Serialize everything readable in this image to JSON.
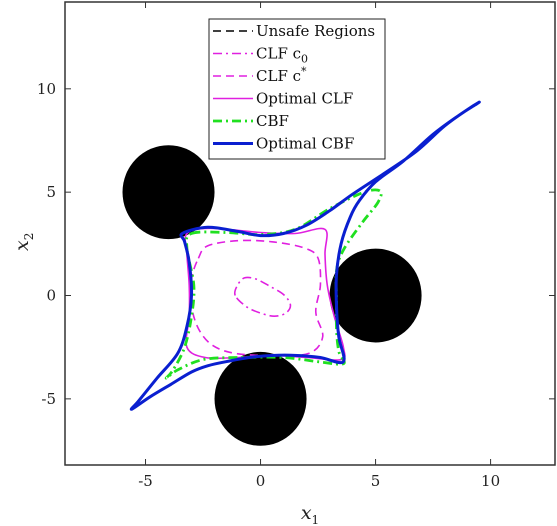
{
  "chart_data": {
    "type": "line",
    "xlim": [
      -8.5,
      12.8
    ],
    "ylim": [
      -8.2,
      14.2
    ],
    "xticks": [
      -5,
      0,
      5,
      10
    ],
    "yticks": [
      -5,
      0,
      5,
      10
    ],
    "xtick_labels": [
      "-5",
      "0",
      "5",
      "10"
    ],
    "ytick_labels": [
      "-5",
      "0",
      "5",
      "10"
    ],
    "xlabel": {
      "base": "x",
      "sub": "1"
    },
    "ylabel": {
      "base": "x",
      "sub": "2"
    },
    "grid": false,
    "legend_position": "top-center",
    "obstacles": [
      {
        "center": [
          -4,
          5
        ],
        "radius": 2
      },
      {
        "center": [
          5,
          0
        ],
        "radius": 2
      },
      {
        "center": [
          0,
          -5
        ],
        "radius": 2
      }
    ],
    "series": [
      {
        "name": "Unsafe Regions",
        "legend_label": "Unsafe Regions",
        "color": "#000000",
        "dash": "dashed",
        "kind": "legend-only"
      },
      {
        "name": "CLF c0",
        "legend_label": {
          "base": "CLF c",
          "sub": "0"
        },
        "color": "#e020e0",
        "dash": "dashdot",
        "points": [
          [
            -1.1,
            0
          ],
          [
            -1.0,
            0.5
          ],
          [
            -0.7,
            0.85
          ],
          [
            -0.2,
            0.8
          ],
          [
            0.4,
            0.45
          ],
          [
            1.0,
            0.05
          ],
          [
            1.3,
            -0.45
          ],
          [
            1.1,
            -0.85
          ],
          [
            0.6,
            -1.0
          ],
          [
            0,
            -0.85
          ],
          [
            -0.6,
            -0.55
          ]
        ]
      },
      {
        "name": "CLF c*",
        "legend_label": {
          "base": "CLF c",
          "sup": "*"
        },
        "color": "#e020e0",
        "dash": "dashed",
        "points": [
          [
            -2.7,
            1.8
          ],
          [
            -2.3,
            2.4
          ],
          [
            -1.0,
            2.65
          ],
          [
            0.5,
            2.6
          ],
          [
            1.9,
            2.3
          ],
          [
            2.5,
            1.8
          ],
          [
            2.6,
            0.5
          ],
          [
            2.4,
            -0.8
          ],
          [
            2.7,
            -2.0
          ],
          [
            2.1,
            -2.8
          ],
          [
            0.5,
            -2.9
          ],
          [
            -1.1,
            -2.8
          ],
          [
            -2.1,
            -2.4
          ],
          [
            -2.7,
            -1.6
          ],
          [
            -3.0,
            -0.5
          ],
          [
            -3.0,
            0.8
          ]
        ]
      },
      {
        "name": "Optimal CLF",
        "legend_label": "Optimal CLF",
        "color": "#e020e0",
        "dash": "solid",
        "points": [
          [
            -3.2,
            3.0
          ],
          [
            -2.2,
            3.25
          ],
          [
            0,
            3.05
          ],
          [
            1.5,
            3.0
          ],
          [
            2.8,
            3.2
          ],
          [
            2.8,
            2.0
          ],
          [
            2.9,
            0.5
          ],
          [
            3.2,
            -1.0
          ],
          [
            3.6,
            -2.5
          ],
          [
            3.5,
            -3.1
          ],
          [
            2.0,
            -3.0
          ],
          [
            0.5,
            -2.9
          ],
          [
            -1.0,
            -3.0
          ],
          [
            -2.4,
            -3.0
          ],
          [
            -3.2,
            -2.5
          ],
          [
            -3.1,
            -1.0
          ],
          [
            -3.1,
            0.5
          ],
          [
            -3.2,
            2.0
          ]
        ]
      },
      {
        "name": "CBF",
        "legend_label": "CBF",
        "color": "#20e020",
        "dash": "dashdot",
        "points": [
          [
            -3.0,
            3.0
          ],
          [
            -1.5,
            3.05
          ],
          [
            0,
            2.95
          ],
          [
            1.5,
            3.2
          ],
          [
            3.0,
            4.2
          ],
          [
            4.5,
            5.0
          ],
          [
            5.2,
            5.05
          ],
          [
            5.1,
            4.5
          ],
          [
            4.4,
            3.5
          ],
          [
            3.6,
            2.2
          ],
          [
            3.3,
            1.2
          ],
          [
            3.3,
            -0.2
          ],
          [
            3.3,
            -1.6
          ],
          [
            3.4,
            -2.7
          ],
          [
            3.6,
            -3.3
          ],
          [
            2.5,
            -3.2
          ],
          [
            1.0,
            -3.0
          ],
          [
            -1.0,
            -3.0
          ],
          [
            -2.5,
            -3.1
          ],
          [
            -3.6,
            -3.6
          ],
          [
            -4.1,
            -4.0
          ],
          [
            -3.8,
            -3.6
          ],
          [
            -3.3,
            -2.5
          ],
          [
            -3.0,
            -1.0
          ],
          [
            -2.9,
            0.5
          ],
          [
            -3.2,
            2.3
          ]
        ]
      },
      {
        "name": "Optimal CBF",
        "legend_label": "Optimal CBF",
        "color": "#0a1fd0",
        "dash": "solid",
        "points": [
          [
            -3.4,
            3.0
          ],
          [
            -2.3,
            3.3
          ],
          [
            -1.0,
            3.1
          ],
          [
            0.0,
            2.9
          ],
          [
            1.0,
            3.0
          ],
          [
            2.0,
            3.4
          ],
          [
            3.0,
            4.1
          ],
          [
            4.0,
            4.9
          ],
          [
            5.5,
            6.0
          ],
          [
            6.8,
            7.0
          ],
          [
            8.0,
            8.2
          ],
          [
            9.0,
            9.0
          ],
          [
            9.5,
            9.35
          ],
          [
            9.3,
            9.2
          ],
          [
            8.6,
            8.7
          ],
          [
            7.5,
            7.8
          ],
          [
            6.2,
            6.5
          ],
          [
            5.0,
            5.5
          ],
          [
            4.3,
            4.6
          ],
          [
            3.9,
            3.8
          ],
          [
            3.5,
            2.5
          ],
          [
            3.3,
            1.0
          ],
          [
            3.3,
            -0.5
          ],
          [
            3.4,
            -2.0
          ],
          [
            3.6,
            -3.2
          ],
          [
            2.6,
            -3.0
          ],
          [
            1.6,
            -2.9
          ],
          [
            0.5,
            -2.9
          ],
          [
            -0.5,
            -3.0
          ],
          [
            -1.5,
            -3.2
          ],
          [
            -2.3,
            -3.4
          ],
          [
            -3.0,
            -3.7
          ],
          [
            -3.9,
            -4.3
          ],
          [
            -4.8,
            -4.9
          ],
          [
            -5.6,
            -5.5
          ],
          [
            -5.3,
            -5.1
          ],
          [
            -4.5,
            -4.0
          ],
          [
            -3.6,
            -2.8
          ],
          [
            -3.2,
            -1.5
          ],
          [
            -3.0,
            0.0
          ],
          [
            -3.1,
            1.6
          ],
          [
            -3.3,
            2.6
          ]
        ]
      }
    ]
  }
}
